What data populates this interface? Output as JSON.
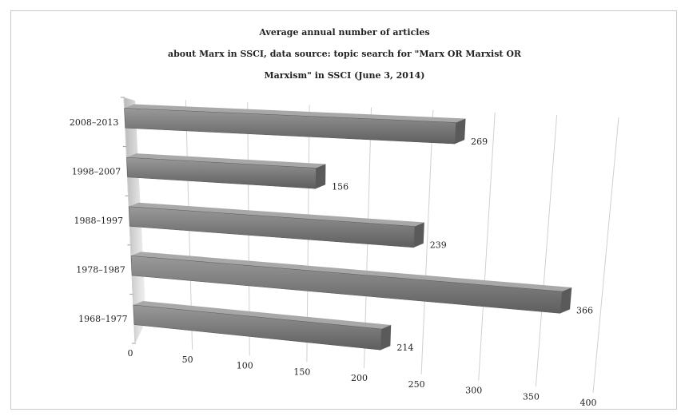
{
  "chart_data": {
    "type": "bar",
    "orientation": "horizontal",
    "title_lines": [
      "Average annual number of articles",
      "about Marx in SSCI, data source: topic search for \"Marx OR Marxist OR",
      "Marxism\" in SSCI (June 3, 2014)"
    ],
    "categories": [
      "2008–2013",
      "1998–2007",
      "1988–1997",
      "1978–1987",
      "1968–1977"
    ],
    "values": [
      269,
      156,
      239,
      366,
      214
    ],
    "data_labels": [
      "269",
      "156",
      "239",
      "366",
      "214"
    ],
    "x_ticks": [
      0,
      50,
      100,
      150,
      200,
      250,
      300,
      350,
      400
    ],
    "xlim": [
      0,
      400
    ],
    "grid": true,
    "perspective": "3d",
    "bar_color": "#7f7f7f"
  }
}
